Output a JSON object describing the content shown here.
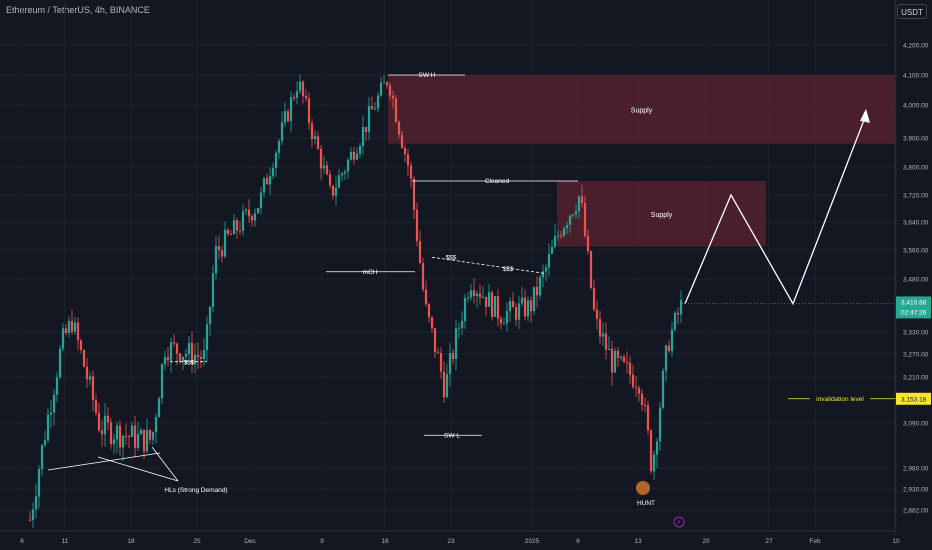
{
  "header": {
    "title": "Ethereum / TetherUS, 4h, BINANCE",
    "currency": "USDT"
  },
  "colors": {
    "background": "#131722",
    "bull": "#26a69a",
    "bear": "#ef5350",
    "zone": "#5c2330",
    "price_badge": "#22ab94",
    "invalidation": "#f5e52d"
  },
  "chart_data": {
    "type": "candlestick",
    "symbol": "ETHUSDT",
    "timeframe": "4h",
    "y_ticks": [
      "4,200.00",
      "4,100.00",
      "4,000.00",
      "3,900.00",
      "3,800.00",
      "3,720.00",
      "3,640.00",
      "3,560.00",
      "3,480.00",
      "3,330.00",
      "3,270.00",
      "3,210.00",
      "3,090.00",
      "2,980.00",
      "2,930.00",
      "2,882.00"
    ],
    "x_ticks": [
      "6",
      "11",
      "18",
      "25",
      "Dec",
      "9",
      "16",
      "23",
      "2025",
      "6",
      "13",
      "20",
      "27",
      "Feb",
      "10"
    ],
    "last_price": "3,410.88",
    "countdown": "02:47:26",
    "invalidation_price": "3,153.18",
    "price_path": [
      [
        "6",
        2860
      ],
      [
        "11",
        3330
      ],
      [
        "11",
        3060
      ],
      [
        "18",
        3020
      ],
      [
        "18",
        3230
      ],
      [
        "25",
        3245
      ],
      [
        "25",
        3560
      ],
      [
        "Dec",
        3720
      ],
      [
        "9",
        4080
      ],
      [
        "9",
        3700
      ],
      [
        "16",
        4090
      ],
      [
        "16",
        3780
      ],
      [
        "23",
        3280
      ],
      [
        "23",
        3450
      ],
      [
        "2025",
        3460
      ],
      [
        "6",
        3720
      ],
      [
        "13",
        3180
      ],
      [
        "13",
        3000
      ],
      [
        "13",
        3410
      ]
    ],
    "zones": [
      {
        "label": "Supply",
        "from": "16",
        "to": "10",
        "high": 4100,
        "low": 3880
      },
      {
        "label": "Supply",
        "from": "2025",
        "to": "27",
        "high": 3760,
        "low": 3570
      }
    ],
    "annotations": [
      {
        "text": "SW H",
        "price": 4100
      },
      {
        "text": "Cleaned",
        "price": 3760
      },
      {
        "text": "mCH",
        "price": 3500
      },
      {
        "text": "$$$",
        "price": 3540
      },
      {
        "text": "$$$",
        "price": 3510
      },
      {
        "text": "$$$",
        "price": 3250
      },
      {
        "text": "SW L",
        "price": 3060
      },
      {
        "text": "HLs (Strong Demand)",
        "price": 2960
      },
      {
        "text": "HUNT",
        "price": 2900
      },
      {
        "text": "invalidation level",
        "price": 3153.18
      }
    ],
    "projection": [
      "3,410",
      "3,720",
      "3,410",
      "3,970"
    ]
  }
}
